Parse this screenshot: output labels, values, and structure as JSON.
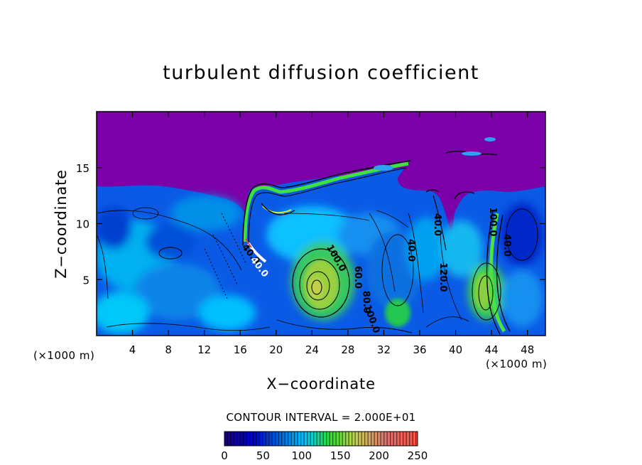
{
  "chart_data": {
    "type": "heatmap",
    "title": "turbulent diffusion coefficient",
    "xlabel": "X−coordinate",
    "ylabel": "Z−coordinate",
    "x_unit_left": "(×1000 m)",
    "x_unit_right": "(×1000 m)",
    "xlim": [
      0,
      50
    ],
    "ylim": [
      0,
      20
    ],
    "x_ticks": [
      4,
      8,
      12,
      16,
      20,
      24,
      28,
      32,
      36,
      40,
      44,
      48
    ],
    "y_ticks": [
      5,
      10,
      15
    ],
    "contour_interval_text": "CONTOUR INTERVAL = 2.000E+01",
    "contour_labels": [
      "40.0",
      "40.0",
      "40.0",
      "40.0",
      "40.0",
      "60.0",
      "80.0",
      "100.0",
      "100.0",
      "100.0",
      "120.0"
    ],
    "colorbar": {
      "min": 0,
      "max": 250,
      "ticks": [
        0,
        50,
        100,
        150,
        200,
        250
      ],
      "colors": [
        "#1a0080",
        "#0000d0",
        "#0070e0",
        "#00c8ff",
        "#30e030",
        "#c8d050",
        "#e07070",
        "#ff5040"
      ]
    },
    "background_value_color": "#7b00a8"
  }
}
